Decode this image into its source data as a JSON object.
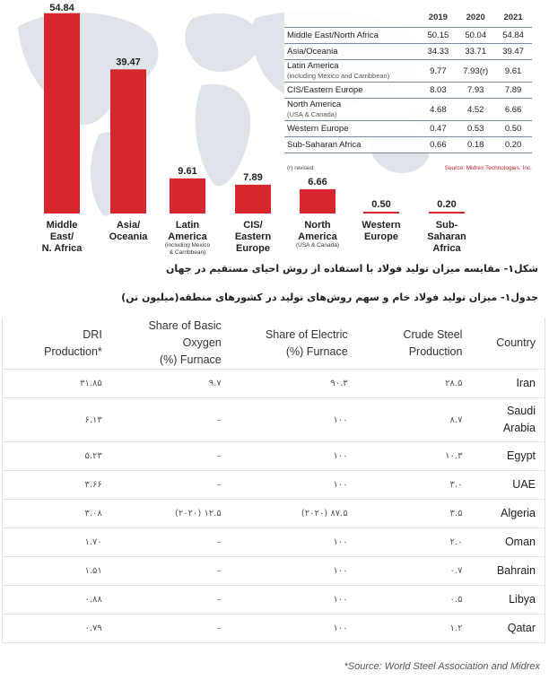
{
  "chart_data": {
    "type": "bar",
    "categories": [
      {
        "name": "Middle East/N. Africa",
        "lines": [
          "Middle",
          "East/",
          "N. Africa"
        ],
        "sub": []
      },
      {
        "name": "Asia/Oceania",
        "lines": [
          "Asia/",
          "Oceania"
        ],
        "sub": []
      },
      {
        "name": "Latin America",
        "lines": [
          "Latin",
          "America"
        ],
        "sub": [
          "(including Mexico",
          "& Carribbean)"
        ]
      },
      {
        "name": "CIS/Eastern Europe",
        "lines": [
          "CIS/",
          "Eastern",
          "Europe"
        ],
        "sub": []
      },
      {
        "name": "North America",
        "lines": [
          "North",
          "America"
        ],
        "sub": [
          "(USA & Canada)"
        ]
      },
      {
        "name": "Western Europe",
        "lines": [
          "Western",
          "Europe"
        ],
        "sub": []
      },
      {
        "name": "Sub-Saharan Africa",
        "lines": [
          "Sub-",
          "Saharan",
          "Africa"
        ],
        "sub": []
      }
    ],
    "values": [
      54.84,
      39.47,
      9.61,
      7.89,
      6.66,
      0.5,
      0.2
    ],
    "value_labels": [
      "54.84",
      "39.47",
      "9.61",
      "7.89",
      "6.66",
      "0.50",
      "0.20"
    ],
    "ylim": [
      0,
      56
    ],
    "bar_color": "#d7262e",
    "map_color": "#dfe4ea"
  },
  "inset_table": {
    "years": [
      "2019",
      "2020",
      "2021"
    ],
    "rows": [
      {
        "name": "Middle East/North Africa",
        "sub": "",
        "values": [
          "50.15",
          "50.04",
          "54.84"
        ]
      },
      {
        "name": "Asia/Oceania",
        "sub": "",
        "values": [
          "34.33",
          "33.71",
          "39.47"
        ]
      },
      {
        "name": "Latin America",
        "sub": "(including Mexico and Carribbean)",
        "values": [
          "9.77",
          "7.93(r)",
          "9.61"
        ]
      },
      {
        "name": "CIS/Eastern Europe",
        "sub": "",
        "values": [
          "8.03",
          "7.93",
          "7.89"
        ]
      },
      {
        "name": "North America",
        "sub": "(USA & Canada)",
        "values": [
          "4.68",
          "4.52",
          "6.66"
        ]
      },
      {
        "name": "Western Europe",
        "sub": "",
        "values": [
          "0.47",
          "0.53",
          "0.50"
        ]
      },
      {
        "name": "Sub-Saharan Africa",
        "sub": "",
        "values": [
          "0.66",
          "0.18",
          "0.20"
        ]
      }
    ],
    "revised_note": "(r) revised",
    "source": "Source: Midrex Technologies, Inc."
  },
  "captions": {
    "figure": "شکل۱- مقایسه میزان تولید فولاد با استفاده از روش احیای مستقیم در جهان",
    "table": "جدول۱- میزان تولید فولاد خام و سهم روش‌های تولید در کشورهای منطقه(میلیون تن)"
  },
  "main_table": {
    "headers": {
      "country": "Country",
      "crude": [
        "Crude Steel",
        "Production"
      ],
      "eaf": [
        "Share of Electric",
        "(%) Furnace"
      ],
      "bof": [
        "Share of Basic Oxygen",
        "(%) Furnace"
      ],
      "dri": [
        "DRI",
        "Production*"
      ]
    },
    "rows": [
      {
        "country": [
          "Iran"
        ],
        "crude": "۲۸.۵",
        "eaf": "۹۰.۳",
        "bof": "۹.۷",
        "dri": "۳۱.۸۵"
      },
      {
        "country": [
          "Saudi",
          "Arabia"
        ],
        "crude": "۸.۷",
        "eaf": "۱۰۰",
        "bof": "–",
        "dri": "۶.۱۳"
      },
      {
        "country": [
          "Egypt"
        ],
        "crude": "۱۰.۳",
        "eaf": "۱۰۰",
        "bof": "–",
        "dri": "۵.۲۳"
      },
      {
        "country": [
          "UAE"
        ],
        "crude": "۳.۰",
        "eaf": "۱۰۰",
        "bof": "–",
        "dri": "۳.۶۶"
      },
      {
        "country": [
          "Algeria"
        ],
        "crude": "۳.۵",
        "eaf": "(۲۰۲۰) ۸۷.۵",
        "bof": "(۲۰۲۰) ۱۲.۵",
        "dri": "۳.۰۸"
      },
      {
        "country": [
          "Oman"
        ],
        "crude": "۲.۰",
        "eaf": "۱۰۰",
        "bof": "–",
        "dri": "۱.۷۰"
      },
      {
        "country": [
          "Bahrain"
        ],
        "crude": "۰.۷",
        "eaf": "۱۰۰",
        "bof": "–",
        "dri": "۱.۵۱"
      },
      {
        "country": [
          "Libya"
        ],
        "crude": "۰.۵",
        "eaf": "۱۰۰",
        "bof": "–",
        "dri": "۰.۸۸"
      },
      {
        "country": [
          "Qatar"
        ],
        "crude": "۱.۲",
        "eaf": "۱۰۰",
        "bof": "–",
        "dri": "۰.۷۹"
      }
    ],
    "source_note": "*Source: World Steel Association and Midrex"
  }
}
